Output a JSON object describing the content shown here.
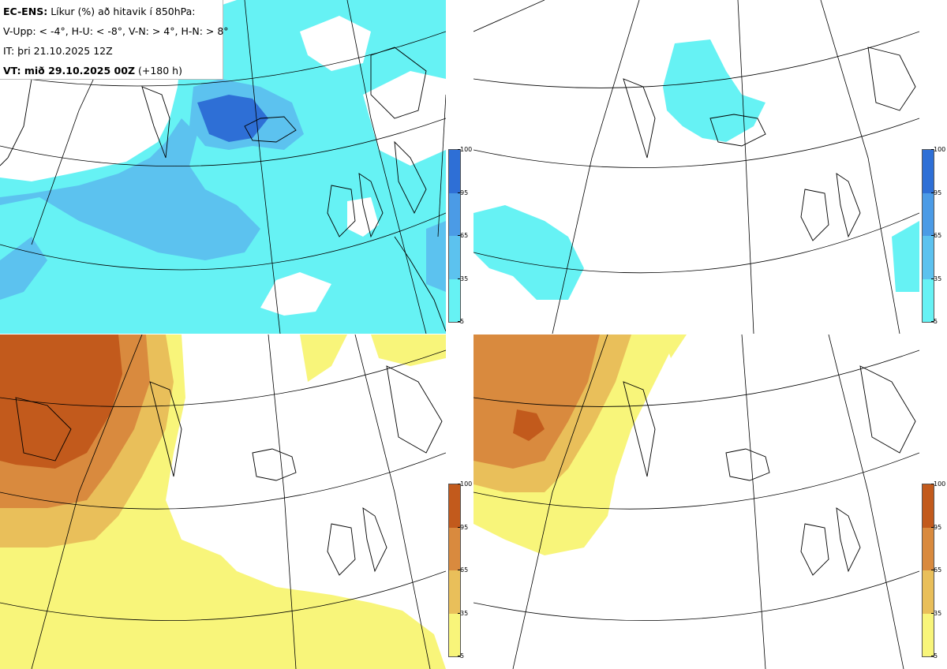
{
  "header": {
    "title_bold": "EC-ENS:",
    "title_rest": "Líkur (%) að hitavik í 850hPa:",
    "thresholds": "V-Upp: < -4°, H-U: < -8°, V-N: > 4°, H-N: > 8°",
    "init_time": "IT: þri 21.10.2025 12Z",
    "valid_bold": "VT: mið 29.10.2025 00Z",
    "valid_rest": "(+180 h)"
  },
  "colorbar_cold": {
    "ticks": [
      "100",
      "95",
      "65",
      "35",
      "5"
    ],
    "colors": [
      "#2e6fd6",
      "#4b9be6",
      "#5cc2ef",
      "#66f2f4"
    ]
  },
  "colorbar_warm": {
    "ticks": [
      "100",
      "95",
      "65",
      "35",
      "5"
    ],
    "colors": [
      "#c25a1c",
      "#d98a3e",
      "#e9bf5a",
      "#f8f57a"
    ]
  },
  "panels": [
    {
      "name": "upper-left",
      "scheme": "cold",
      "threshold": "< -4°"
    },
    {
      "name": "upper-right",
      "scheme": "cold",
      "threshold": "< -8°"
    },
    {
      "name": "lower-left",
      "scheme": "warm",
      "threshold": "> 4°"
    },
    {
      "name": "lower-right",
      "scheme": "warm",
      "threshold": "> 8°"
    }
  ]
}
